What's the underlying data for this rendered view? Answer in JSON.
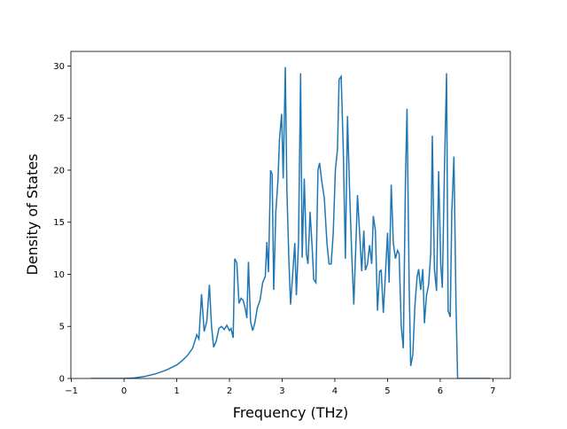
{
  "chart_data": {
    "type": "line",
    "x_label": "Frequency (THz)",
    "y_label": "Density of States",
    "xlim": [
      -1.01,
      7.33
    ],
    "ylim": [
      0,
      31.4
    ],
    "xticks": [
      {
        "value": -1,
        "label": "−1"
      },
      0,
      1,
      2,
      3,
      4,
      5,
      6,
      7
    ],
    "yticks": [
      0,
      5,
      10,
      15,
      20,
      25,
      30
    ],
    "series": [
      {
        "color": "#1f77b4",
        "x": [
          -0.63,
          0,
          0.2,
          0.4,
          0.6,
          0.8,
          1.0,
          1.1,
          1.2,
          1.3,
          1.38,
          1.42,
          1.47,
          1.52,
          1.57,
          1.62,
          1.66,
          1.7,
          1.75,
          1.8,
          1.85,
          1.9,
          1.95,
          2.0,
          2.03,
          2.07,
          2.1,
          2.14,
          2.18,
          2.22,
          2.26,
          2.3,
          2.33,
          2.36,
          2.4,
          2.44,
          2.48,
          2.53,
          2.58,
          2.63,
          2.68,
          2.71,
          2.74,
          2.78,
          2.81,
          2.84,
          2.88,
          2.92,
          2.95,
          2.99,
          3.02,
          3.06,
          3.09,
          3.13,
          3.16,
          3.2,
          3.24,
          3.27,
          3.31,
          3.35,
          3.38,
          3.42,
          3.46,
          3.49,
          3.53,
          3.57,
          3.6,
          3.64,
          3.68,
          3.71,
          3.75,
          3.8,
          3.85,
          3.89,
          3.93,
          3.97,
          4.01,
          4.05,
          4.08,
          4.12,
          4.16,
          4.2,
          4.24,
          4.28,
          4.32,
          4.36,
          4.4,
          4.43,
          4.47,
          4.51,
          4.55,
          4.58,
          4.62,
          4.66,
          4.7,
          4.73,
          4.77,
          4.81,
          4.85,
          4.88,
          4.92,
          4.96,
          5.0,
          5.03,
          5.07,
          5.11,
          5.15,
          5.19,
          5.22,
          5.26,
          5.3,
          5.34,
          5.37,
          5.41,
          5.44,
          5.48,
          5.52,
          5.56,
          5.59,
          5.63,
          5.67,
          5.7,
          5.74,
          5.78,
          5.82,
          5.85,
          5.89,
          5.93,
          5.97,
          6.01,
          6.04,
          6.08,
          6.12,
          6.15,
          6.19,
          6.22,
          6.26,
          6.3,
          6.33,
          6.5,
          6.95
        ],
        "values": [
          0,
          0,
          0.05,
          0.2,
          0.45,
          0.8,
          1.3,
          1.7,
          2.2,
          2.9,
          4.2,
          3.8,
          8.1,
          4.5,
          5.5,
          9.0,
          5.0,
          3.0,
          3.6,
          4.8,
          5.0,
          4.7,
          5.1,
          4.6,
          4.8,
          3.9,
          11.5,
          11.1,
          7.2,
          7.7,
          7.5,
          6.7,
          5.8,
          11.2,
          5.5,
          4.6,
          5.3,
          6.8,
          7.5,
          9.2,
          9.8,
          13.1,
          10.2,
          20.0,
          19.6,
          8.5,
          16,
          19,
          23,
          25.4,
          19.2,
          29.9,
          18,
          11,
          7.1,
          10,
          13,
          8,
          13,
          29.3,
          11.6,
          19.2,
          12,
          11,
          16,
          12.5,
          9.5,
          9.2,
          20,
          20.7,
          19,
          17.3,
          13,
          11,
          11,
          14,
          20,
          22,
          28.7,
          29,
          22,
          11.5,
          25.2,
          18,
          12,
          7.1,
          13,
          17.6,
          14,
          10.3,
          14.2,
          10.4,
          11,
          12.8,
          11,
          15.6,
          14.2,
          6.5,
          10.3,
          10.4,
          6.3,
          10,
          14,
          9.2,
          18.6,
          13,
          11.5,
          12.3,
          12,
          5,
          2.9,
          19,
          25.9,
          9,
          1.2,
          2.3,
          7,
          9.7,
          10.5,
          8.5,
          10.5,
          5.3,
          8,
          9,
          12,
          23.3,
          10.5,
          8.4,
          19.9,
          11,
          8.7,
          20,
          29.3,
          6.5,
          5.9,
          16,
          21.3,
          7,
          0,
          0,
          0
        ]
      }
    ]
  }
}
